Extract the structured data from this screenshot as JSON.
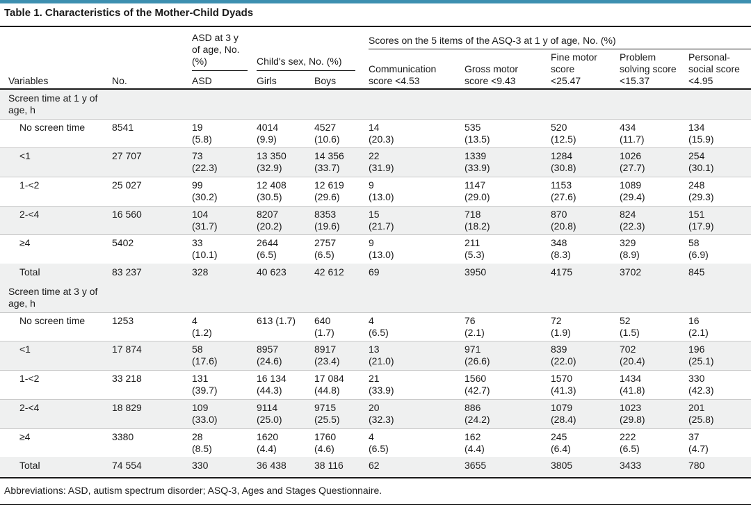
{
  "title": "Table 1. Characteristics of the Mother-Child Dyads",
  "header": {
    "asd_group": "ASD at 3 y\nof age, No.\n(%)",
    "sex_group": "Child's sex, No. (%)",
    "asq_group": "Scores on the 5 items of the ASQ-3 at 1 y of age, No. (%)",
    "variables": "Variables",
    "no": "No.",
    "asd": "ASD",
    "girls": "Girls",
    "boys": "Boys",
    "communication": "Communication\nscore <4.53",
    "gross_motor": "Gross motor\nscore <9.43",
    "fine_motor": "Fine motor\nscore\n<25.47",
    "problem_solving": "Problem\nsolving score\n<15.37",
    "personal_social": "Personal-\nsocial score\n<4.95"
  },
  "sections": [
    {
      "label": "Screen time at 1 y of\nage, h",
      "rows": [
        {
          "label": "No screen time",
          "no": "8541",
          "asd": "19\n(5.8)",
          "girls": "4014\n(9.9)",
          "boys": "4527\n(10.6)",
          "comm": "14\n(20.3)",
          "gross": "535\n(13.5)",
          "fine": "520\n(12.5)",
          "prob": "434\n(11.7)",
          "pers": "134\n(15.9)"
        },
        {
          "label": "<1",
          "no": "27 707",
          "asd": "73\n(22.3)",
          "girls": "13 350\n(32.9)",
          "boys": "14 356\n(33.7)",
          "comm": "22\n(31.9)",
          "gross": "1339\n(33.9)",
          "fine": "1284\n(30.8)",
          "prob": "1026\n(27.7)",
          "pers": "254\n(30.1)"
        },
        {
          "label": "1-<2",
          "no": "25 027",
          "asd": "99\n(30.2)",
          "girls": "12 408\n(30.5)",
          "boys": "12 619\n(29.6)",
          "comm": "9\n(13.0)",
          "gross": "1147\n(29.0)",
          "fine": "1153\n(27.6)",
          "prob": "1089\n(29.4)",
          "pers": "248\n(29.3)"
        },
        {
          "label": "2-<4",
          "no": "16 560",
          "asd": "104\n(31.7)",
          "girls": "8207\n(20.2)",
          "boys": "8353\n(19.6)",
          "comm": "15\n(21.7)",
          "gross": "718\n(18.2)",
          "fine": "870\n(20.8)",
          "prob": "824\n(22.3)",
          "pers": "151\n(17.9)"
        },
        {
          "label": "≥4",
          "no": "5402",
          "asd": "33\n(10.1)",
          "girls": "2644\n(6.5)",
          "boys": "2757\n(6.5)",
          "comm": "9\n(13.0)",
          "gross": "211\n(5.3)",
          "fine": "348\n(8.3)",
          "prob": "329\n(8.9)",
          "pers": "58\n(6.9)"
        }
      ],
      "total": {
        "label": "Total",
        "no": "83 237",
        "asd": "328",
        "girls": "40 623",
        "boys": "42 612",
        "comm": "69",
        "gross": "3950",
        "fine": "4175",
        "prob": "3702",
        "pers": "845"
      }
    },
    {
      "label": "Screen time at 3 y of\nage, h",
      "rows": [
        {
          "label": "No screen time",
          "no": "1253",
          "asd": "4\n(1.2)",
          "girls": "613 (1.7)",
          "boys": "640\n(1.7)",
          "comm": "4\n(6.5)",
          "gross": "76\n(2.1)",
          "fine": "72\n(1.9)",
          "prob": "52\n(1.5)",
          "pers": "16\n(2.1)"
        },
        {
          "label": "<1",
          "no": "17 874",
          "asd": "58\n(17.6)",
          "girls": "8957\n(24.6)",
          "boys": "8917\n(23.4)",
          "comm": "13\n(21.0)",
          "gross": "971\n(26.6)",
          "fine": "839\n(22.0)",
          "prob": "702\n(20.4)",
          "pers": "196\n(25.1)"
        },
        {
          "label": "1-<2",
          "no": "33 218",
          "asd": "131\n(39.7)",
          "girls": "16 134\n(44.3)",
          "boys": "17 084\n(44.8)",
          "comm": "21\n(33.9)",
          "gross": "1560\n(42.7)",
          "fine": "1570\n(41.3)",
          "prob": "1434\n(41.8)",
          "pers": "330\n(42.3)"
        },
        {
          "label": "2-<4",
          "no": "18 829",
          "asd": "109\n(33.0)",
          "girls": "9114\n(25.0)",
          "boys": "9715\n(25.5)",
          "comm": "20\n(32.3)",
          "gross": "886\n(24.2)",
          "fine": "1079\n(28.4)",
          "prob": "1023\n(29.8)",
          "pers": "201\n(25.8)"
        },
        {
          "label": "≥4",
          "no": "3380",
          "asd": "28\n(8.5)",
          "girls": "1620\n(4.4)",
          "boys": "1760\n(4.6)",
          "comm": "4\n(6.5)",
          "gross": "162\n(4.4)",
          "fine": "245\n(6.4)",
          "prob": "222\n(6.5)",
          "pers": "37\n(4.7)"
        }
      ],
      "total": {
        "label": "Total",
        "no": "74 554",
        "asd": "330",
        "girls": "36 438",
        "boys": "38 116",
        "comm": "62",
        "gross": "3655",
        "fine": "3805",
        "prob": "3433",
        "pers": "780"
      }
    }
  ],
  "footnote": "Abbreviations: ASD, autism spectrum disorder; ASQ-3, Ages and Stages Questionnaire."
}
